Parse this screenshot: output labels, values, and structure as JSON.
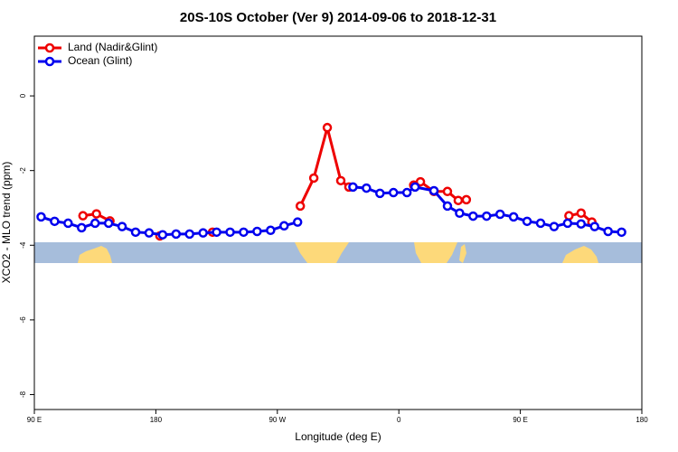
{
  "chart_data": {
    "type": "line",
    "title": "20S-10S October (Ver 9)   2014-09-06 to 2018-12-31",
    "x_label": "Longitude (deg E)",
    "y_label": "XCO2 - MLO trend (ppm)",
    "xlim": [
      90,
      540
    ],
    "ylim": [
      -8.4,
      1.6
    ],
    "xticks": [
      {
        "value": 90,
        "label": "90 E"
      },
      {
        "value": 180,
        "label": "180"
      },
      {
        "value": 270,
        "label": "90 W"
      },
      {
        "value": 360,
        "label": "0"
      },
      {
        "value": 450,
        "label": "90 E"
      },
      {
        "value": 540,
        "label": "180"
      }
    ],
    "yticks": [
      0,
      -2,
      -4,
      -6,
      -8
    ],
    "legend": "top-left",
    "series": [
      {
        "name": "Land (Nadir&Glint)",
        "color": "#ee0000",
        "x": [
          126,
          136,
          146,
          null,
          183,
          null,
          222,
          null,
          287,
          297,
          307,
          317,
          323,
          null,
          371,
          376,
          386,
          396,
          404,
          410,
          null,
          486,
          495,
          503
        ],
        "values": [
          -3.21,
          -3.16,
          -3.35,
          null,
          -3.75,
          null,
          -3.65,
          null,
          -2.95,
          -2.2,
          -0.85,
          -2.27,
          -2.44,
          null,
          -2.39,
          -2.3,
          -2.56,
          -2.56,
          -2.8,
          -2.78,
          null,
          -3.21,
          -3.14,
          -3.38
        ]
      },
      {
        "name": "Ocean (Glint)",
        "color": "#0000ee",
        "x": [
          95,
          105,
          115,
          125,
          135,
          145,
          155,
          165,
          175,
          185,
          195,
          205,
          215,
          225,
          235,
          245,
          255,
          265,
          275,
          285,
          null,
          326,
          336,
          346,
          356,
          366,
          372,
          386,
          396,
          405,
          415,
          425,
          435,
          445,
          455,
          465,
          475,
          485,
          495,
          505,
          515,
          525
        ],
        "values": [
          -3.24,
          -3.36,
          -3.41,
          -3.53,
          -3.41,
          -3.41,
          -3.5,
          -3.65,
          -3.67,
          -3.72,
          -3.7,
          -3.7,
          -3.67,
          -3.65,
          -3.65,
          -3.65,
          -3.63,
          -3.6,
          -3.48,
          -3.38,
          null,
          -2.44,
          -2.47,
          -2.61,
          -2.59,
          -2.59,
          -2.44,
          -2.54,
          -2.95,
          -3.14,
          -3.22,
          -3.22,
          -3.17,
          -3.24,
          -3.36,
          -3.41,
          -3.5,
          -3.41,
          -3.43,
          -3.5,
          -3.63,
          -3.65
        ]
      }
    ]
  }
}
